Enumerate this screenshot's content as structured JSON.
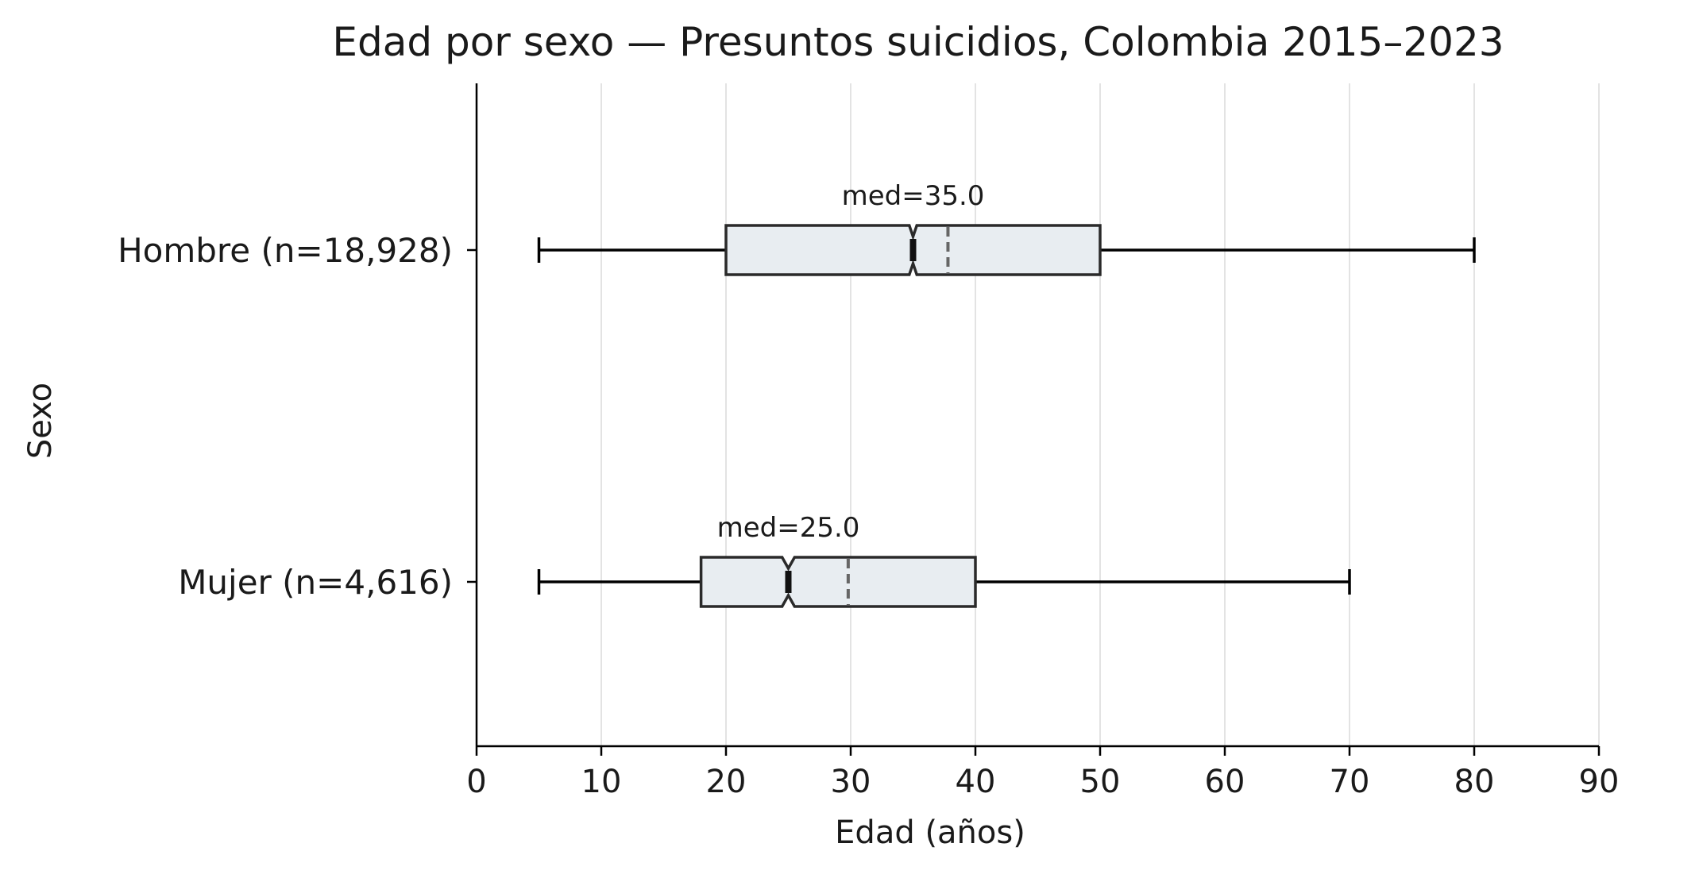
{
  "chart_data": {
    "type": "boxplot",
    "orientation": "horizontal",
    "title": "Edad por sexo — Presuntos suicidios, Colombia 2015–2023",
    "xlabel": "Edad (años)",
    "ylabel": "Sexo",
    "xlim": [
      0,
      90
    ],
    "xticks": [
      0,
      10,
      20,
      30,
      40,
      50,
      60,
      70,
      80,
      90
    ],
    "grid": "vertical",
    "notched": true,
    "series": [
      {
        "category": "Hombre  (n=18,928)",
        "whisker_low": 5,
        "q1": 20,
        "median": 35,
        "q3": 50,
        "whisker_high": 80,
        "mean": 37.8,
        "notch_low": 34.7,
        "notch_high": 35.3,
        "annotation": "med=35.0"
      },
      {
        "category": "Mujer  (n=4,616)",
        "whisker_low": 5,
        "q1": 18,
        "median": 25,
        "q3": 40,
        "whisker_high": 70,
        "mean": 29.8,
        "notch_low": 24.5,
        "notch_high": 25.5,
        "annotation": "med=25.0"
      }
    ],
    "colors": {
      "box_fill": "#e8edf1",
      "box_edge": "#2a2a2a",
      "median": "#111111",
      "mean": "#666666",
      "grid": "#e3e3e3"
    }
  }
}
